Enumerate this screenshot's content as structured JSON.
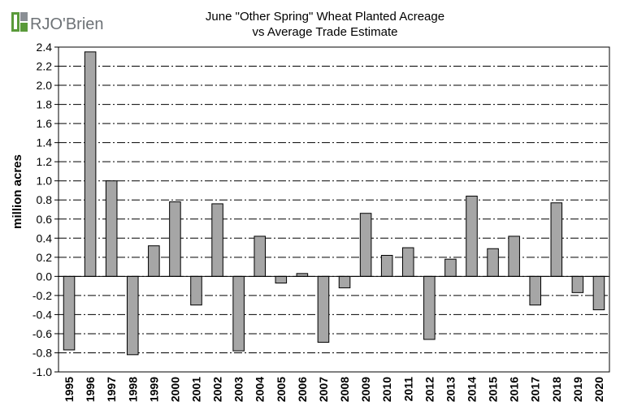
{
  "brand": {
    "logo_text": "RJO'Brien",
    "logo_colors": {
      "mark_green": "#5a9a3a",
      "mark_gray": "#8a8f94",
      "text": "#6d7276"
    }
  },
  "chart_data": {
    "type": "bar",
    "title": "June \"Other Spring\" Wheat Planted Acreage",
    "subtitle": "vs Average Trade Estimate",
    "ylabel": "million acres",
    "xlabel": "",
    "ylim": [
      -1.0,
      2.4
    ],
    "ytick_step": 0.2,
    "yticks": [
      "2.4",
      "2.2",
      "2.0",
      "1.8",
      "1.6",
      "1.4",
      "1.2",
      "1.0",
      "0.8",
      "0.6",
      "0.4",
      "0.2",
      "0.0",
      "-0.2",
      "-0.4",
      "-0.6",
      "-0.8",
      "-1.0"
    ],
    "grid": "horizontal dash-dot",
    "legend": "none",
    "bar_color": "#a6a6a6",
    "categories": [
      "1995",
      "1996",
      "1997",
      "1998",
      "1999",
      "2000",
      "2001",
      "2002",
      "2003",
      "2004",
      "2005",
      "2006",
      "2007",
      "2008",
      "2009",
      "2010",
      "2011",
      "2012",
      "2013",
      "2014",
      "2015",
      "2016",
      "2017",
      "2018",
      "2019",
      "2020"
    ],
    "values": [
      -0.77,
      2.35,
      1.0,
      -0.82,
      0.32,
      0.78,
      -0.3,
      0.76,
      -0.78,
      0.42,
      -0.07,
      0.03,
      -0.69,
      -0.12,
      0.66,
      0.22,
      0.3,
      -0.66,
      0.18,
      0.84,
      0.29,
      0.42,
      -0.3,
      0.77,
      -0.17,
      -0.35
    ]
  }
}
